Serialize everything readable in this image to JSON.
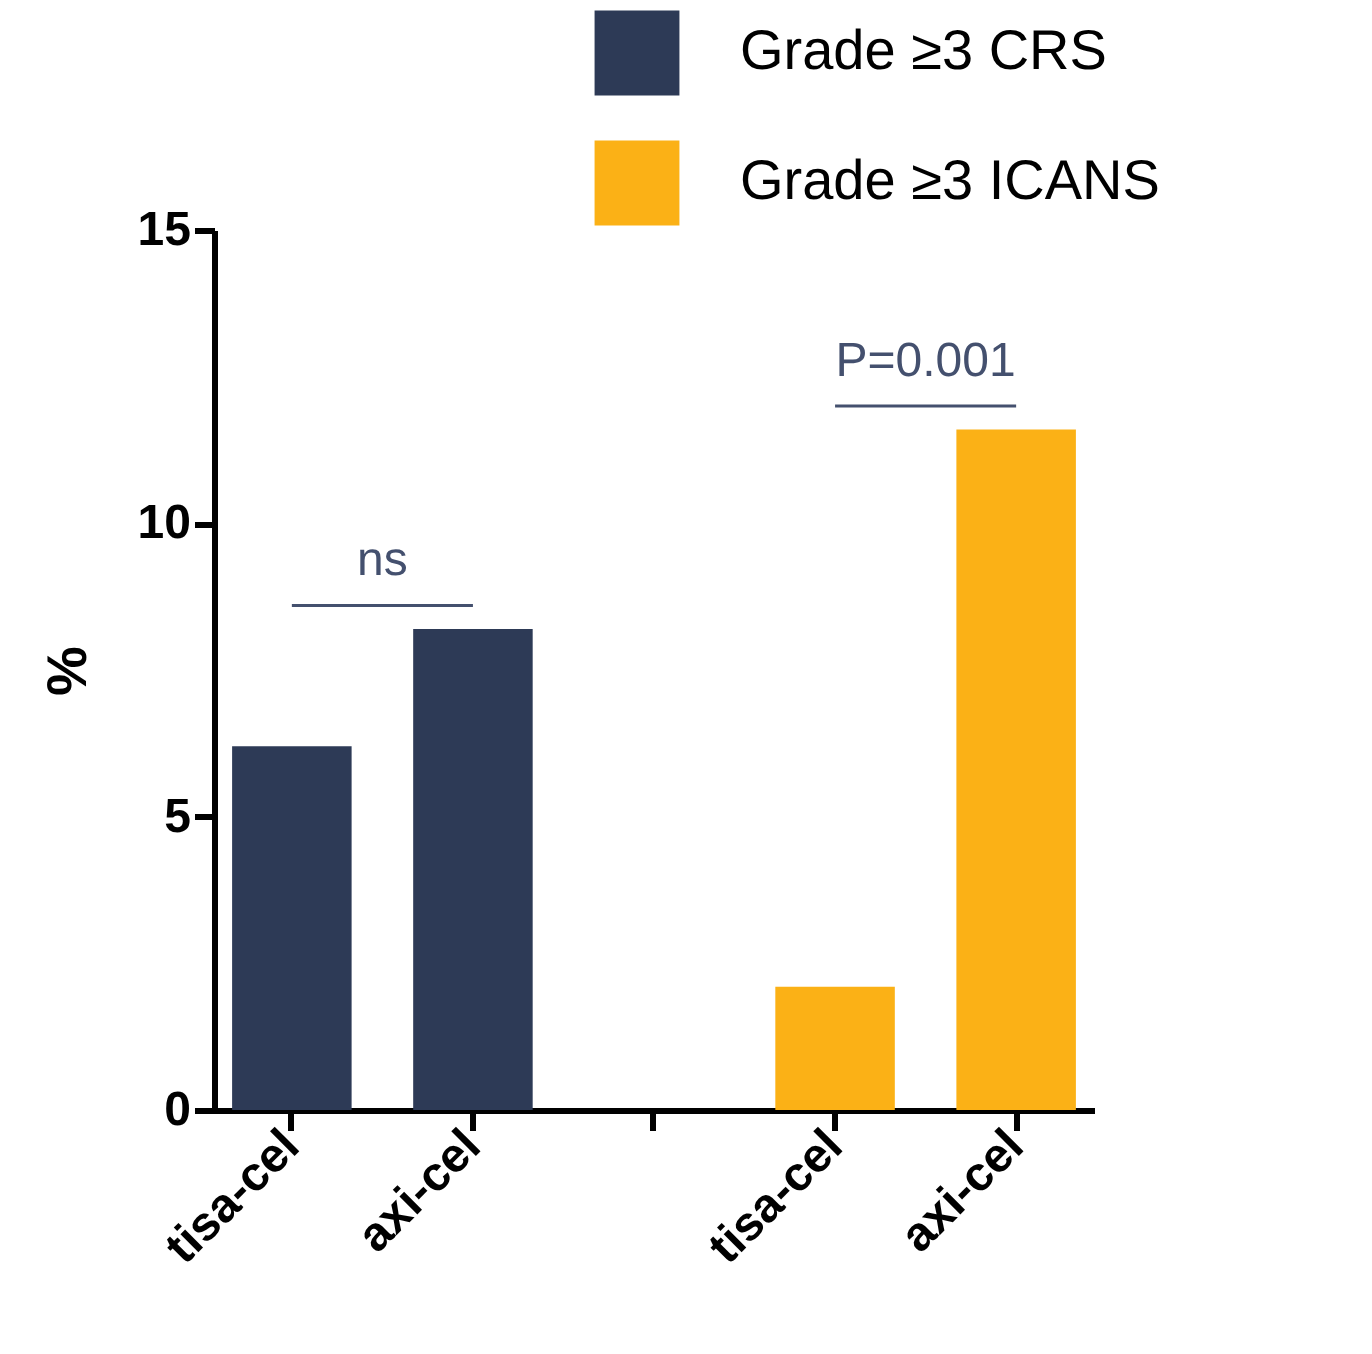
{
  "chart_data": {
    "type": "bar",
    "ylabel": "%",
    "categories": [
      "tisa-cel",
      "axi-cel",
      null,
      "tisa-cel",
      "axi-cel"
    ],
    "series": [
      {
        "name": "Grade ≥3 CRS",
        "color": "#2d3a56",
        "values": [
          6.2,
          8.2,
          null,
          null,
          null
        ]
      },
      {
        "name": "Grade ≥3 ICANS",
        "color": "#fbb116",
        "values": [
          null,
          null,
          null,
          2.1,
          11.6
        ]
      }
    ],
    "ylim": [
      0,
      15
    ],
    "yticks": [
      0,
      5,
      10,
      15
    ],
    "grid": false,
    "legend": "top right",
    "annotations": [
      "ns",
      "P=0.001"
    ]
  }
}
